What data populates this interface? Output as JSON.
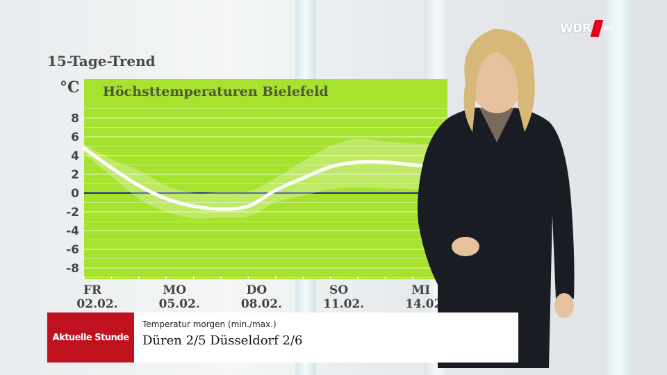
{
  "page_title": "15-Tage-Trend",
  "logo": {
    "text": "WDR",
    "suffix": "HD"
  },
  "lower_third": {
    "show_name": "Aktuelle Stunde",
    "subtitle": "Temperatur morgen (min./max.)",
    "headline": "Düren 2/5   Düsseldorf 2/6"
  },
  "chart_data": {
    "type": "line",
    "title": "Höchsttemperaturen Bielefeld",
    "ylabel": "°C",
    "xlabel": "",
    "ylim": [
      -9,
      10
    ],
    "yticks": [
      8,
      6,
      4,
      2,
      0,
      -2,
      -4,
      -6,
      -8
    ],
    "xticks": [
      {
        "day": 0,
        "weekday": "FR",
        "date": "02.02."
      },
      {
        "day": 3,
        "weekday": "MO",
        "date": "05.02."
      },
      {
        "day": 6,
        "weekday": "DO",
        "date": "08.02."
      },
      {
        "day": 9,
        "weekday": "SO",
        "date": "11.02."
      },
      {
        "day": 12,
        "weekday": "MI",
        "date": "14.02."
      }
    ],
    "series": [
      {
        "x": [
          0,
          1,
          2,
          3,
          4,
          5,
          6,
          7,
          8,
          9,
          10,
          11,
          12,
          13
        ],
        "values": [
          4.8,
          2.7,
          0.8,
          -0.6,
          -1.4,
          -1.7,
          -1.4,
          0.3,
          1.6,
          2.8,
          3.3,
          3.3,
          3.0,
          2.8
        ]
      }
    ],
    "bands": [
      {
        "x": [
          0,
          1,
          2,
          3,
          4,
          5,
          6,
          7,
          8,
          9,
          10,
          11,
          12,
          13
        ],
        "low": [
          4.2,
          1.8,
          -0.6,
          -2.0,
          -2.7,
          -2.6,
          -2.5,
          -1.0,
          -0.3,
          0.4,
          0.6,
          0.5,
          0.4,
          0.2
        ],
        "high": [
          5.2,
          3.6,
          2.4,
          0.8,
          0.0,
          0.1,
          0.2,
          1.6,
          3.4,
          5.0,
          5.8,
          5.5,
          5.3,
          5.2
        ]
      }
    ],
    "zero_line_color": "#1a2a8c",
    "plot_color": "#a6e22e",
    "grid": true
  }
}
